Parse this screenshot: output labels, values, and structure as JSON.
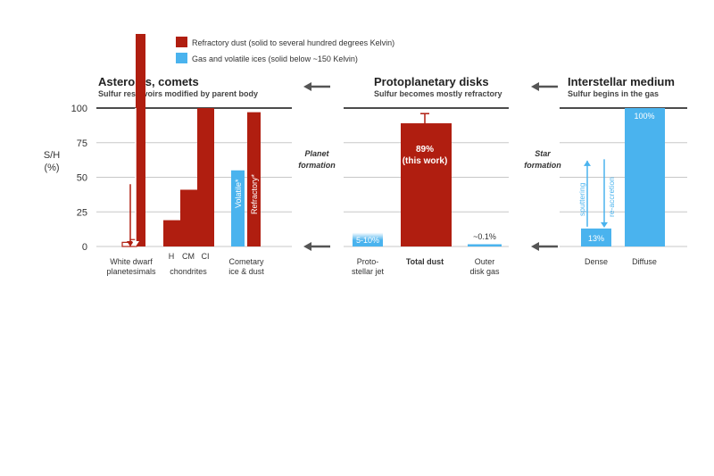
{
  "legend": [
    {
      "label": "Refractory dust (solid to several hundred degrees Kelvin)",
      "color": "#b01e10"
    },
    {
      "label": "Gas and volatile ices (solid below ~150 Kelvin)",
      "color": "#4ab3ee"
    }
  ],
  "y_axis": {
    "label_line1": "S/H",
    "label_line2": "(%)",
    "ticks": [
      "0",
      "25",
      "50",
      "75",
      "100"
    ]
  },
  "panels": [
    {
      "title": "Asteroids, comets",
      "subtitle": "Sulfur reservoirs modified by parent body"
    },
    {
      "title": "Protoplanetary disks",
      "subtitle": "Sulfur becomes mostly refractory"
    },
    {
      "title": "Interstellar medium",
      "subtitle": "Sulfur begins in the gas"
    }
  ],
  "stages": {
    "planet": {
      "line1": "Planet",
      "line2": "formation"
    },
    "star": {
      "line1": "Star",
      "line2": "formation"
    }
  },
  "categories": {
    "white_dwarf": {
      "line1": "White dwarf",
      "line2": "planetesimals"
    },
    "chondrites": "chondrites",
    "chondrite_types": [
      "H",
      "CM",
      "CI"
    ],
    "cometary": {
      "line1": "Cometary",
      "line2": "ice & dust"
    },
    "jet": {
      "line1": "Proto-",
      "line2": "stellar jet"
    },
    "total_dust": "Total dust",
    "outer_disk": {
      "line1": "Outer",
      "line2": "disk gas"
    },
    "dense": "Dense",
    "diffuse": "Diffuse"
  },
  "bar_labels": {
    "volatile": "Volatile*",
    "refractory": "Refractory*",
    "jet": "5-10%",
    "total_dust_line1": "89%",
    "total_dust_line2": "(this work)",
    "outer_disk": "~0.1%",
    "dense": "13%",
    "diffuse": "100%",
    "sputtering": "sputtering",
    "re_accretion": "re-accretion"
  },
  "chart_data": {
    "type": "bar",
    "ylabel": "S/H (%)",
    "ylim": [
      0,
      100
    ],
    "grid": true,
    "colors": {
      "refractory": "#b01e10",
      "volatile": "#4ab3ee"
    },
    "bars": [
      {
        "group": "White dwarf planetesimals",
        "type": "refractory",
        "value": 3
      },
      {
        "group": "White dwarf planetesimals",
        "type": "refractory",
        "value": 5
      },
      {
        "group": "White dwarf planetesimals",
        "type": "refractory",
        "value": 100
      },
      {
        "group": "Chondrites",
        "category": "H",
        "type": "refractory",
        "value": 19
      },
      {
        "group": "Chondrites",
        "category": "CM",
        "type": "refractory",
        "value": 41
      },
      {
        "group": "Chondrites",
        "category": "CI",
        "type": "refractory",
        "value": 100
      },
      {
        "group": "Cometary ice & dust",
        "category": "Volatile*",
        "type": "volatile",
        "value": 55
      },
      {
        "group": "Cometary ice & dust",
        "category": "Refractory*",
        "type": "refractory",
        "value": 97
      },
      {
        "group": "Protostellar jet",
        "type": "volatile",
        "value": 10,
        "range": [
          5,
          10
        ]
      },
      {
        "group": "Total dust",
        "type": "refractory",
        "value": 89,
        "error": [
          83,
          96
        ]
      },
      {
        "group": "Outer disk gas",
        "type": "volatile",
        "value": 0.1
      },
      {
        "group": "Dense ISM",
        "type": "volatile",
        "value": 13
      },
      {
        "group": "Diffuse ISM",
        "type": "volatile",
        "value": 100
      }
    ]
  }
}
